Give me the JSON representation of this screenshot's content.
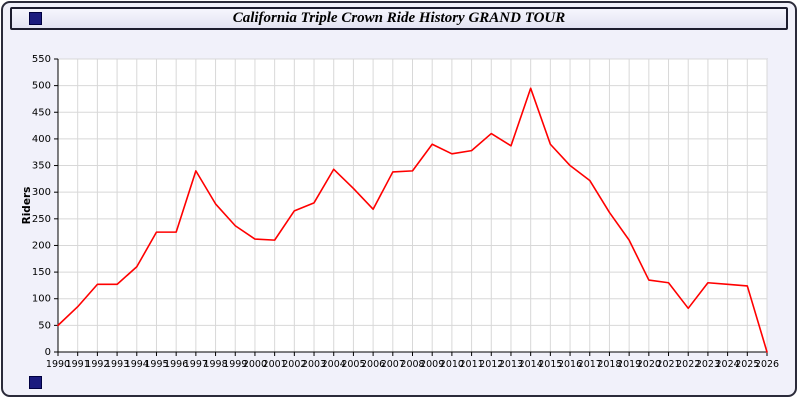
{
  "window": {
    "title": "California Triple Crown Ride History GRAND TOUR"
  },
  "colors": {
    "page_background": "#f1f1fa",
    "outer_border": "#2b2b3a",
    "titlebar_background": "#e9e9f7",
    "plot_background": "#ffffff",
    "grid": "#d8d8d8",
    "axis": "#000000",
    "tick_text": "#000000",
    "line": "#ff0000",
    "decorative_square": "#1b1b7e"
  },
  "chart_data": {
    "type": "line",
    "title": "California Triple Crown Ride History GRAND TOUR",
    "xlabel": "",
    "ylabel": "Riders",
    "ylim": [
      0,
      550
    ],
    "ytick_step": 50,
    "grid": true,
    "legend": "none",
    "categories": [
      "1990",
      "1991",
      "1992",
      "1993",
      "1994",
      "1995",
      "1996",
      "1997",
      "1998",
      "1999",
      "2000",
      "2001",
      "2002",
      "2003",
      "2004",
      "2005",
      "2006",
      "2007",
      "2008",
      "2009",
      "2010",
      "2011",
      "2012",
      "2013",
      "2014",
      "2015",
      "2016",
      "2017",
      "2018",
      "2019",
      "2020",
      "2021",
      "2022",
      "2023",
      "2024",
      "2025",
      "2026"
    ],
    "series": [
      {
        "name": "Riders",
        "color": "#ff0000",
        "values": [
          50,
          85,
          127,
          127,
          160,
          225,
          225,
          340,
          278,
          237,
          212,
          210,
          265,
          280,
          343,
          307,
          268,
          338,
          340,
          390,
          372,
          378,
          410,
          387,
          495,
          390,
          350,
          322,
          262,
          210,
          135,
          130,
          82,
          130,
          127,
          124,
          0
        ]
      }
    ]
  }
}
